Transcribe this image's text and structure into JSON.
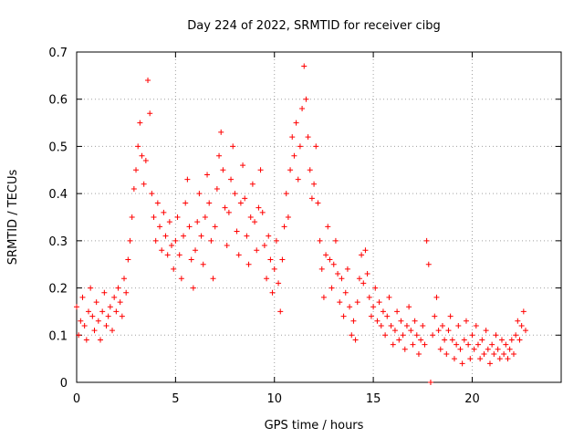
{
  "chart_data": {
    "type": "scatter",
    "title": "Day 224 of 2022, SRMTID for receiver cibg",
    "xlabel": "GPS time / hours",
    "ylabel": "SRMTID / TECUs",
    "xlim": [
      0,
      24.5
    ],
    "ylim": [
      0,
      0.7
    ],
    "xticks": [
      0,
      5,
      10,
      15,
      20
    ],
    "xtick_labels": [
      "0",
      "5",
      "10",
      "15",
      "20"
    ],
    "yticks": [
      0,
      0.1,
      0.2,
      0.3,
      0.4,
      0.5,
      0.6,
      0.7
    ],
    "ytick_labels": [
      "0",
      "0.1",
      "0.2",
      "0.3",
      "0.4",
      "0.5",
      "0.6",
      "0.7"
    ],
    "grid": true,
    "marker": "plus",
    "color": "#ff0000",
    "series": [
      {
        "name": "SRMTID",
        "points": [
          [
            0.0,
            0.16
          ],
          [
            0.1,
            0.1
          ],
          [
            0.2,
            0.13
          ],
          [
            0.3,
            0.18
          ],
          [
            0.4,
            0.12
          ],
          [
            0.5,
            0.09
          ],
          [
            0.6,
            0.15
          ],
          [
            0.7,
            0.2
          ],
          [
            0.8,
            0.14
          ],
          [
            0.9,
            0.11
          ],
          [
            1.0,
            0.17
          ],
          [
            1.1,
            0.13
          ],
          [
            1.2,
            0.09
          ],
          [
            1.3,
            0.15
          ],
          [
            1.4,
            0.19
          ],
          [
            1.5,
            0.12
          ],
          [
            1.6,
            0.14
          ],
          [
            1.7,
            0.16
          ],
          [
            1.8,
            0.11
          ],
          [
            1.9,
            0.18
          ],
          [
            2.0,
            0.15
          ],
          [
            2.1,
            0.2
          ],
          [
            2.2,
            0.17
          ],
          [
            2.3,
            0.14
          ],
          [
            2.4,
            0.22
          ],
          [
            2.5,
            0.19
          ],
          [
            2.6,
            0.26
          ],
          [
            2.7,
            0.3
          ],
          [
            2.8,
            0.35
          ],
          [
            2.9,
            0.41
          ],
          [
            3.0,
            0.45
          ],
          [
            3.1,
            0.5
          ],
          [
            3.2,
            0.55
          ],
          [
            3.3,
            0.48
          ],
          [
            3.4,
            0.42
          ],
          [
            3.5,
            0.47
          ],
          [
            3.6,
            0.64
          ],
          [
            3.7,
            0.57
          ],
          [
            3.8,
            0.4
          ],
          [
            3.9,
            0.35
          ],
          [
            4.0,
            0.3
          ],
          [
            4.1,
            0.38
          ],
          [
            4.2,
            0.33
          ],
          [
            4.3,
            0.28
          ],
          [
            4.4,
            0.36
          ],
          [
            4.5,
            0.31
          ],
          [
            4.6,
            0.27
          ],
          [
            4.7,
            0.34
          ],
          [
            4.8,
            0.29
          ],
          [
            4.9,
            0.24
          ],
          [
            5.0,
            0.3
          ],
          [
            5.1,
            0.35
          ],
          [
            5.2,
            0.27
          ],
          [
            5.3,
            0.22
          ],
          [
            5.4,
            0.31
          ],
          [
            5.5,
            0.38
          ],
          [
            5.6,
            0.43
          ],
          [
            5.7,
            0.33
          ],
          [
            5.8,
            0.26
          ],
          [
            5.9,
            0.2
          ],
          [
            6.0,
            0.28
          ],
          [
            6.1,
            0.34
          ],
          [
            6.2,
            0.4
          ],
          [
            6.3,
            0.31
          ],
          [
            6.4,
            0.25
          ],
          [
            6.5,
            0.35
          ],
          [
            6.6,
            0.44
          ],
          [
            6.7,
            0.38
          ],
          [
            6.8,
            0.3
          ],
          [
            6.9,
            0.22
          ],
          [
            7.0,
            0.33
          ],
          [
            7.1,
            0.41
          ],
          [
            7.2,
            0.48
          ],
          [
            7.3,
            0.53
          ],
          [
            7.4,
            0.45
          ],
          [
            7.5,
            0.37
          ],
          [
            7.6,
            0.29
          ],
          [
            7.7,
            0.36
          ],
          [
            7.8,
            0.43
          ],
          [
            7.9,
            0.5
          ],
          [
            8.0,
            0.4
          ],
          [
            8.1,
            0.32
          ],
          [
            8.2,
            0.27
          ],
          [
            8.3,
            0.38
          ],
          [
            8.4,
            0.46
          ],
          [
            8.5,
            0.39
          ],
          [
            8.6,
            0.31
          ],
          [
            8.7,
            0.25
          ],
          [
            8.8,
            0.35
          ],
          [
            8.9,
            0.42
          ],
          [
            9.0,
            0.34
          ],
          [
            9.1,
            0.28
          ],
          [
            9.2,
            0.37
          ],
          [
            9.3,
            0.45
          ],
          [
            9.4,
            0.36
          ],
          [
            9.5,
            0.29
          ],
          [
            9.6,
            0.22
          ],
          [
            9.7,
            0.31
          ],
          [
            9.8,
            0.26
          ],
          [
            9.9,
            0.19
          ],
          [
            10.0,
            0.24
          ],
          [
            10.1,
            0.3
          ],
          [
            10.2,
            0.21
          ],
          [
            10.3,
            0.15
          ],
          [
            10.4,
            0.26
          ],
          [
            10.5,
            0.33
          ],
          [
            10.6,
            0.4
          ],
          [
            10.7,
            0.35
          ],
          [
            10.8,
            0.45
          ],
          [
            10.9,
            0.52
          ],
          [
            11.0,
            0.48
          ],
          [
            11.1,
            0.55
          ],
          [
            11.2,
            0.43
          ],
          [
            11.3,
            0.5
          ],
          [
            11.4,
            0.58
          ],
          [
            11.5,
            0.67
          ],
          [
            11.6,
            0.6
          ],
          [
            11.7,
            0.52
          ],
          [
            11.8,
            0.45
          ],
          [
            11.9,
            0.39
          ],
          [
            12.0,
            0.42
          ],
          [
            12.1,
            0.5
          ],
          [
            12.2,
            0.38
          ],
          [
            12.3,
            0.3
          ],
          [
            12.4,
            0.24
          ],
          [
            12.5,
            0.18
          ],
          [
            12.6,
            0.27
          ],
          [
            12.7,
            0.33
          ],
          [
            12.8,
            0.26
          ],
          [
            12.9,
            0.2
          ],
          [
            13.0,
            0.25
          ],
          [
            13.1,
            0.3
          ],
          [
            13.2,
            0.23
          ],
          [
            13.3,
            0.17
          ],
          [
            13.4,
            0.22
          ],
          [
            13.5,
            0.14
          ],
          [
            13.6,
            0.19
          ],
          [
            13.7,
            0.24
          ],
          [
            13.8,
            0.16
          ],
          [
            13.9,
            0.1
          ],
          [
            14.0,
            0.13
          ],
          [
            14.1,
            0.09
          ],
          [
            14.2,
            0.17
          ],
          [
            14.3,
            0.22
          ],
          [
            14.4,
            0.27
          ],
          [
            14.5,
            0.21
          ],
          [
            14.6,
            0.28
          ],
          [
            14.7,
            0.23
          ],
          [
            14.8,
            0.18
          ],
          [
            14.9,
            0.14
          ],
          [
            15.0,
            0.16
          ],
          [
            15.1,
            0.2
          ],
          [
            15.2,
            0.13
          ],
          [
            15.3,
            0.17
          ],
          [
            15.4,
            0.12
          ],
          [
            15.5,
            0.15
          ],
          [
            15.6,
            0.1
          ],
          [
            15.7,
            0.14
          ],
          [
            15.8,
            0.18
          ],
          [
            15.9,
            0.12
          ],
          [
            16.0,
            0.08
          ],
          [
            16.1,
            0.11
          ],
          [
            16.2,
            0.15
          ],
          [
            16.3,
            0.09
          ],
          [
            16.4,
            0.13
          ],
          [
            16.5,
            0.1
          ],
          [
            16.6,
            0.07
          ],
          [
            16.7,
            0.12
          ],
          [
            16.8,
            0.16
          ],
          [
            16.9,
            0.11
          ],
          [
            17.0,
            0.08
          ],
          [
            17.1,
            0.13
          ],
          [
            17.2,
            0.1
          ],
          [
            17.3,
            0.06
          ],
          [
            17.4,
            0.09
          ],
          [
            17.5,
            0.12
          ],
          [
            17.6,
            0.08
          ],
          [
            17.7,
            0.3
          ],
          [
            17.8,
            0.25
          ],
          [
            17.9,
            0.0
          ],
          [
            18.0,
            0.1
          ],
          [
            18.1,
            0.14
          ],
          [
            18.2,
            0.18
          ],
          [
            18.3,
            0.11
          ],
          [
            18.4,
            0.07
          ],
          [
            18.5,
            0.12
          ],
          [
            18.6,
            0.09
          ],
          [
            18.7,
            0.06
          ],
          [
            18.8,
            0.11
          ],
          [
            18.9,
            0.14
          ],
          [
            19.0,
            0.09
          ],
          [
            19.1,
            0.05
          ],
          [
            19.2,
            0.08
          ],
          [
            19.3,
            0.12
          ],
          [
            19.4,
            0.07
          ],
          [
            19.5,
            0.04
          ],
          [
            19.6,
            0.09
          ],
          [
            19.7,
            0.13
          ],
          [
            19.8,
            0.08
          ],
          [
            19.9,
            0.05
          ],
          [
            20.0,
            0.1
          ],
          [
            20.1,
            0.07
          ],
          [
            20.2,
            0.12
          ],
          [
            20.3,
            0.08
          ],
          [
            20.4,
            0.05
          ],
          [
            20.5,
            0.09
          ],
          [
            20.6,
            0.06
          ],
          [
            20.7,
            0.11
          ],
          [
            20.8,
            0.07
          ],
          [
            20.9,
            0.04
          ],
          [
            21.0,
            0.08
          ],
          [
            21.1,
            0.06
          ],
          [
            21.2,
            0.1
          ],
          [
            21.3,
            0.07
          ],
          [
            21.4,
            0.05
          ],
          [
            21.5,
            0.09
          ],
          [
            21.6,
            0.06
          ],
          [
            21.7,
            0.08
          ],
          [
            21.8,
            0.05
          ],
          [
            21.9,
            0.07
          ],
          [
            22.0,
            0.09
          ],
          [
            22.1,
            0.06
          ],
          [
            22.2,
            0.1
          ],
          [
            22.3,
            0.13
          ],
          [
            22.4,
            0.09
          ],
          [
            22.5,
            0.12
          ],
          [
            22.6,
            0.15
          ],
          [
            22.7,
            0.11
          ]
        ]
      }
    ]
  }
}
